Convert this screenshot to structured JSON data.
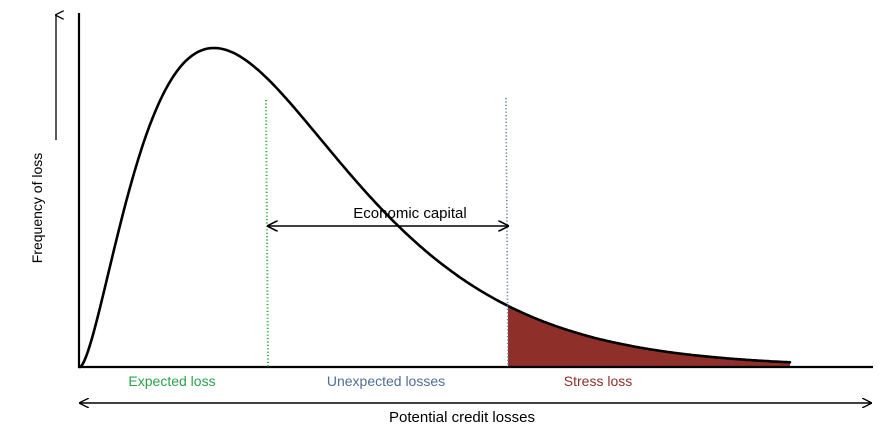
{
  "chart_data": {
    "type": "area",
    "ylabel": "Frequency of loss",
    "xlabel": "Potential credit losses",
    "annotation": "Economic capital",
    "regions": [
      {
        "label": "Expected loss",
        "color": "#2ca24c"
      },
      {
        "label": "Unexpected losses",
        "color": "#4e6f96"
      },
      {
        "label": "Stress loss",
        "color": "#8e2f2a"
      }
    ],
    "curve_color": "#000000",
    "stress_fill_color": "#8e2f2a",
    "expected_line_color": "#3cb04a",
    "unexpected_line_color": "#5b7fb0"
  }
}
